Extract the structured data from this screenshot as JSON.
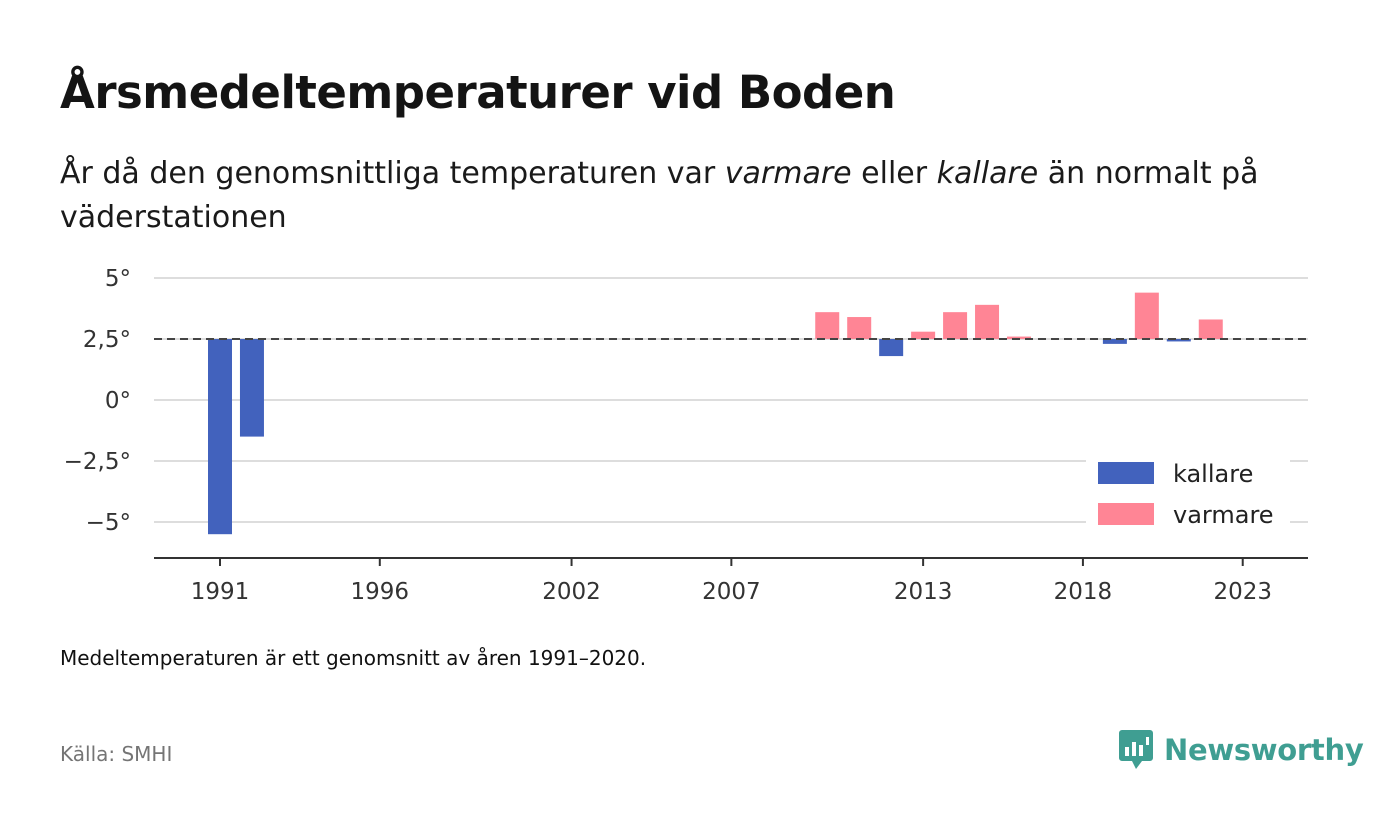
{
  "header": {
    "title": "Årsmedeltemperaturer vid Boden",
    "subtitle_part1": "År då den genomsnittliga temperaturen var ",
    "subtitle_em1": "varmare",
    "subtitle_part2": " eller ",
    "subtitle_em2": "kallare",
    "subtitle_part3": " än normalt på väderstationen"
  },
  "chart_data": {
    "type": "bar",
    "baseline": 2.5,
    "ylim": [
      -6.5,
      5
    ],
    "xlim": [
      1989,
      2025
    ],
    "yticks": [
      5,
      2.5,
      0,
      -2.5,
      -5
    ],
    "ytick_labels": [
      "5°",
      "2,5°",
      "0°",
      "−2,5°",
      "−5°"
    ],
    "xticks": [
      1991,
      1996,
      2002,
      2007,
      2013,
      2018,
      2023
    ],
    "xtick_labels": [
      "1991",
      "1996",
      "2002",
      "2007",
      "2013",
      "2018",
      "2023"
    ],
    "grid": true,
    "legend_position": "bottom-right",
    "colors": {
      "kallare": "#4262bd",
      "varmare": "#ff8595"
    },
    "legend": [
      {
        "key": "kallare",
        "label": "kallare"
      },
      {
        "key": "varmare",
        "label": "varmare"
      }
    ],
    "data": [
      {
        "year": 1991,
        "value": -5.5
      },
      {
        "year": 1992,
        "value": -1.5
      },
      {
        "year": 2010,
        "value": 3.6
      },
      {
        "year": 2011,
        "value": 3.4
      },
      {
        "year": 2012,
        "value": 1.8
      },
      {
        "year": 2013,
        "value": 2.8
      },
      {
        "year": 2014,
        "value": 3.6
      },
      {
        "year": 2015,
        "value": 3.9
      },
      {
        "year": 2016,
        "value": 2.6
      },
      {
        "year": 2019,
        "value": 2.3
      },
      {
        "year": 2020,
        "value": 4.4
      },
      {
        "year": 2021,
        "value": 2.4
      },
      {
        "year": 2022,
        "value": 3.3
      }
    ]
  },
  "footer": {
    "note": "Medeltemperaturen är ett genomsnitt av åren 1991–2020.",
    "source": "Källa: SMHI",
    "brand": "Newsworthy",
    "brand_color": "#3f9e92"
  }
}
